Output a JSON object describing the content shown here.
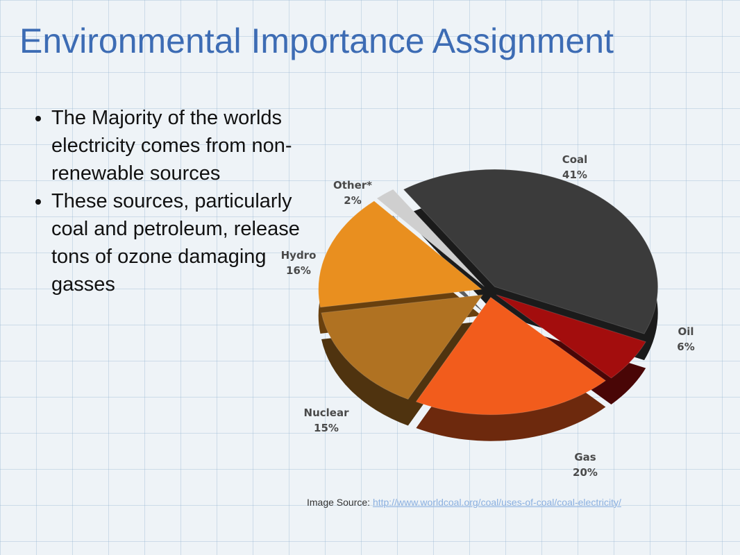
{
  "slide": {
    "title": "Environmental Importance Assignment",
    "bullets": [
      "The Majority of the worlds electricity comes from non-renewable sources",
      "These sources, particularly coal and petroleum, release tons of ozone damaging gasses"
    ],
    "source_label": "Image Source:",
    "source_url": "http://www.worldcoal.org/coal/uses-of-coal/coal-electricity/"
  },
  "chart_data": {
    "type": "pie",
    "categories": [
      "Coal",
      "Oil",
      "Gas",
      "Nuclear",
      "Hydro",
      "Other*"
    ],
    "values": [
      41,
      6,
      20,
      15,
      16,
      2
    ],
    "value_labels": [
      "41%",
      "6%",
      "20%",
      "15%",
      "16%",
      "2%"
    ],
    "colors": [
      "#3b3b3b",
      "#a30d0d",
      "#f25c1c",
      "#b07222",
      "#e98f1f",
      "#cfcfcf"
    ]
  }
}
